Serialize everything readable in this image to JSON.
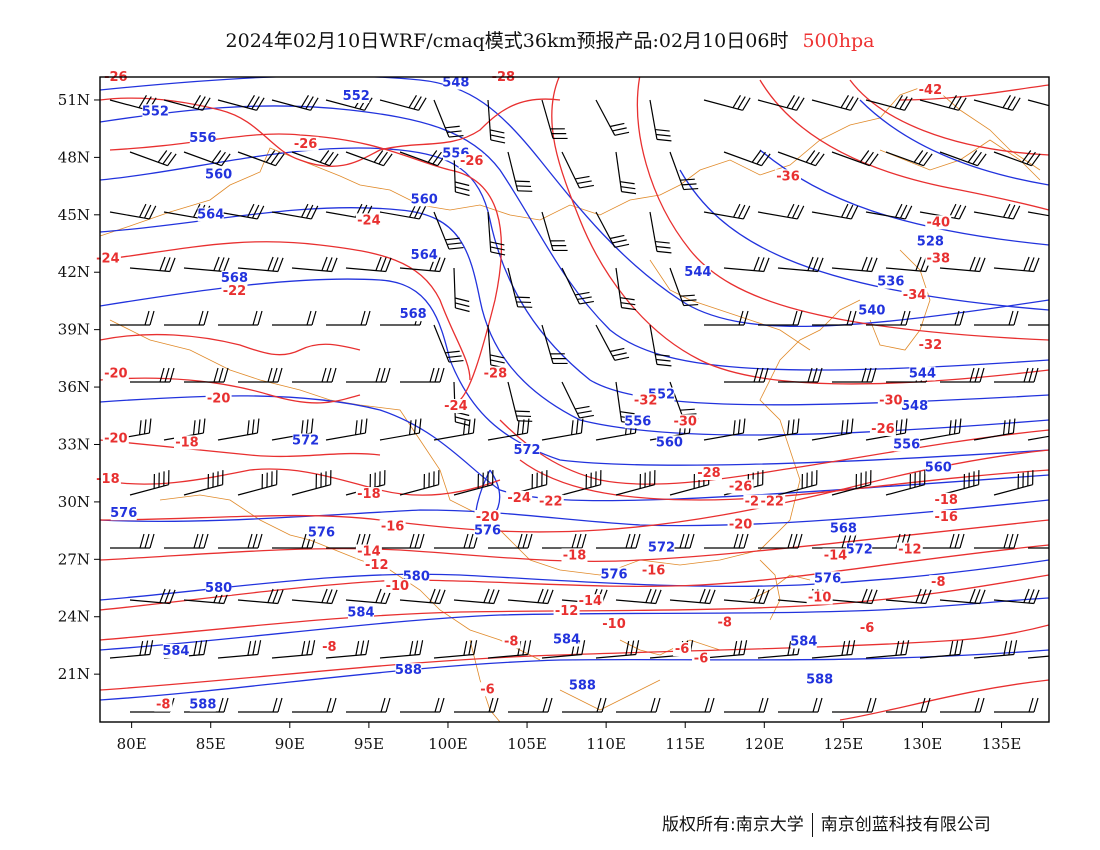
{
  "title": {
    "main": "2024年02月10日WRF/cmaq模式36km预报产品:02月10日06时",
    "level": "500hpa"
  },
  "footer": {
    "copyright": "版权所有:南京大学",
    "company": "南京创蓝科技有限公司"
  },
  "colors": {
    "height_contours": "#2233dd",
    "temperature_contours": "#e83030",
    "borders": "#e08a2a",
    "wind_barbs": "#000000"
  },
  "axes": {
    "lon_labels": [
      "80E",
      "85E",
      "90E",
      "95E",
      "100E",
      "105E",
      "110E",
      "115E",
      "120E",
      "125E",
      "130E",
      "135E"
    ],
    "lat_labels": [
      "51N",
      "48N",
      "45N",
      "42N",
      "39N",
      "36N",
      "33N",
      "30N",
      "27N",
      "24N",
      "21N"
    ]
  },
  "map_extent": {
    "lon_min": 78,
    "lon_max": 138,
    "lat_min": 18.5,
    "lat_max": 52.2
  },
  "height_labels": [
    {
      "text": "552",
      "lon": 81.5,
      "lat": 50.2
    },
    {
      "text": "552",
      "lon": 94.2,
      "lat": 51.0
    },
    {
      "text": "548",
      "lon": 100.5,
      "lat": 51.7
    },
    {
      "text": "556",
      "lon": 84.5,
      "lat": 48.8
    },
    {
      "text": "556",
      "lon": 100.5,
      "lat": 48.0
    },
    {
      "text": "560",
      "lon": 85.5,
      "lat": 46.9
    },
    {
      "text": "560",
      "lon": 98.5,
      "lat": 45.6
    },
    {
      "text": "564",
      "lon": 85.0,
      "lat": 44.8
    },
    {
      "text": "564",
      "lon": 98.5,
      "lat": 42.7
    },
    {
      "text": "568",
      "lon": 86.5,
      "lat": 41.5
    },
    {
      "text": "568",
      "lon": 97.8,
      "lat": 39.6
    },
    {
      "text": "572",
      "lon": 91.0,
      "lat": 33.0
    },
    {
      "text": "572",
      "lon": 105.0,
      "lat": 32.5
    },
    {
      "text": "576",
      "lon": 79.5,
      "lat": 29.2
    },
    {
      "text": "576",
      "lon": 92.0,
      "lat": 28.2
    },
    {
      "text": "576",
      "lon": 102.5,
      "lat": 28.3
    },
    {
      "text": "580",
      "lon": 85.5,
      "lat": 25.3
    },
    {
      "text": "580",
      "lon": 98.0,
      "lat": 25.9
    },
    {
      "text": "584",
      "lon": 94.5,
      "lat": 24.0
    },
    {
      "text": "584",
      "lon": 82.8,
      "lat": 22.0
    },
    {
      "text": "584",
      "lon": 107.5,
      "lat": 22.6
    },
    {
      "text": "584",
      "lon": 122.5,
      "lat": 22.5
    },
    {
      "text": "588",
      "lon": 97.5,
      "lat": 21.0
    },
    {
      "text": "588",
      "lon": 108.5,
      "lat": 20.2
    },
    {
      "text": "588",
      "lon": 123.5,
      "lat": 20.5
    },
    {
      "text": "588",
      "lon": 84.5,
      "lat": 19.2
    },
    {
      "text": "544",
      "lon": 115.8,
      "lat": 41.8
    },
    {
      "text": "540",
      "lon": 126.8,
      "lat": 39.8
    },
    {
      "text": "536",
      "lon": 128.0,
      "lat": 41.3
    },
    {
      "text": "528",
      "lon": 130.5,
      "lat": 43.4
    },
    {
      "text": "544",
      "lon": 130.0,
      "lat": 36.5
    },
    {
      "text": "548",
      "lon": 129.5,
      "lat": 34.8
    },
    {
      "text": "552",
      "lon": 113.5,
      "lat": 35.4
    },
    {
      "text": "556",
      "lon": 112.0,
      "lat": 34.0
    },
    {
      "text": "556",
      "lon": 129.0,
      "lat": 32.8
    },
    {
      "text": "560",
      "lon": 114.0,
      "lat": 32.9
    },
    {
      "text": "560",
      "lon": 131.0,
      "lat": 31.6
    },
    {
      "text": "568",
      "lon": 125.0,
      "lat": 28.4
    },
    {
      "text": "572",
      "lon": 113.5,
      "lat": 27.4
    },
    {
      "text": "572",
      "lon": 126.0,
      "lat": 27.3
    },
    {
      "text": "576",
      "lon": 110.5,
      "lat": 26.0
    },
    {
      "text": "576",
      "lon": 124.0,
      "lat": 25.8
    }
  ],
  "temperature_labels": [
    {
      "text": "-26",
      "lon": 79.0,
      "lat": 52.0
    },
    {
      "text": "-28",
      "lon": 103.5,
      "lat": 52.0
    },
    {
      "text": "-26",
      "lon": 91.0,
      "lat": 48.5
    },
    {
      "text": "-26",
      "lon": 101.5,
      "lat": 47.6
    },
    {
      "text": "-42",
      "lon": 130.5,
      "lat": 51.3
    },
    {
      "text": "-36",
      "lon": 121.5,
      "lat": 46.8
    },
    {
      "text": "-40",
      "lon": 131.0,
      "lat": 44.4
    },
    {
      "text": "-38",
      "lon": 131.0,
      "lat": 42.5
    },
    {
      "text": "-34",
      "lon": 129.5,
      "lat": 40.6
    },
    {
      "text": "-32",
      "lon": 130.5,
      "lat": 38.0
    },
    {
      "text": "-24",
      "lon": 95.0,
      "lat": 44.5
    },
    {
      "text": "-24",
      "lon": 78.5,
      "lat": 42.5
    },
    {
      "text": "-22",
      "lon": 86.5,
      "lat": 40.8
    },
    {
      "text": "-20",
      "lon": 79.0,
      "lat": 36.5
    },
    {
      "text": "-20",
      "lon": 85.5,
      "lat": 35.2
    },
    {
      "text": "-20",
      "lon": 79.0,
      "lat": 33.1
    },
    {
      "text": "-18",
      "lon": 83.5,
      "lat": 32.9
    },
    {
      "text": "-18",
      "lon": 78.5,
      "lat": 31.0
    },
    {
      "text": "-18",
      "lon": 95.0,
      "lat": 30.2
    },
    {
      "text": "-16",
      "lon": 96.5,
      "lat": 28.5
    },
    {
      "text": "-14",
      "lon": 95.0,
      "lat": 27.2
    },
    {
      "text": "-12",
      "lon": 95.5,
      "lat": 26.5
    },
    {
      "text": "-10",
      "lon": 96.8,
      "lat": 25.4
    },
    {
      "text": "-8",
      "lon": 92.5,
      "lat": 22.2
    },
    {
      "text": "-8",
      "lon": 82.0,
      "lat": 19.2
    },
    {
      "text": "-8",
      "lon": 104.0,
      "lat": 22.5
    },
    {
      "text": "-6",
      "lon": 114.8,
      "lat": 22.1
    },
    {
      "text": "-6",
      "lon": 102.5,
      "lat": 20.0
    },
    {
      "text": "-28",
      "lon": 103.0,
      "lat": 36.5
    },
    {
      "text": "-24",
      "lon": 100.5,
      "lat": 34.8
    },
    {
      "text": "-32",
      "lon": 112.5,
      "lat": 35.1
    },
    {
      "text": "-30",
      "lon": 115.0,
      "lat": 34.0
    },
    {
      "text": "-30",
      "lon": 128.0,
      "lat": 35.1
    },
    {
      "text": "-28",
      "lon": 116.5,
      "lat": 31.3
    },
    {
      "text": "-26",
      "lon": 127.5,
      "lat": 33.6
    },
    {
      "text": "-24",
      "lon": 104.5,
      "lat": 30.0
    },
    {
      "text": "-22",
      "lon": 106.5,
      "lat": 29.8
    },
    {
      "text": "-20",
      "lon": 102.5,
      "lat": 29.0
    },
    {
      "text": "-26",
      "lon": 118.5,
      "lat": 30.6
    },
    {
      "text": "-24",
      "lon": 119.5,
      "lat": 29.8
    },
    {
      "text": "-22",
      "lon": 120.5,
      "lat": 29.8
    },
    {
      "text": "-20",
      "lon": 118.5,
      "lat": 28.6
    },
    {
      "text": "-18",
      "lon": 108.0,
      "lat": 27.0
    },
    {
      "text": "-16",
      "lon": 113.0,
      "lat": 26.2
    },
    {
      "text": "-14",
      "lon": 109.0,
      "lat": 24.6
    },
    {
      "text": "-12",
      "lon": 107.5,
      "lat": 24.1
    },
    {
      "text": "-10",
      "lon": 110.5,
      "lat": 23.4
    },
    {
      "text": "-8",
      "lon": 117.5,
      "lat": 23.5
    },
    {
      "text": "-6",
      "lon": 116.0,
      "lat": 21.6
    },
    {
      "text": "-6",
      "lon": 126.5,
      "lat": 23.2
    },
    {
      "text": "-8",
      "lon": 131.0,
      "lat": 25.6
    },
    {
      "text": "-10",
      "lon": 123.5,
      "lat": 24.8
    },
    {
      "text": "-14",
      "lon": 124.5,
      "lat": 27.0
    },
    {
      "text": "-12",
      "lon": 129.2,
      "lat": 27.3
    },
    {
      "text": "-18",
      "lon": 131.5,
      "lat": 29.9
    },
    {
      "text": "-16",
      "lon": 131.5,
      "lat": 29.0
    }
  ]
}
